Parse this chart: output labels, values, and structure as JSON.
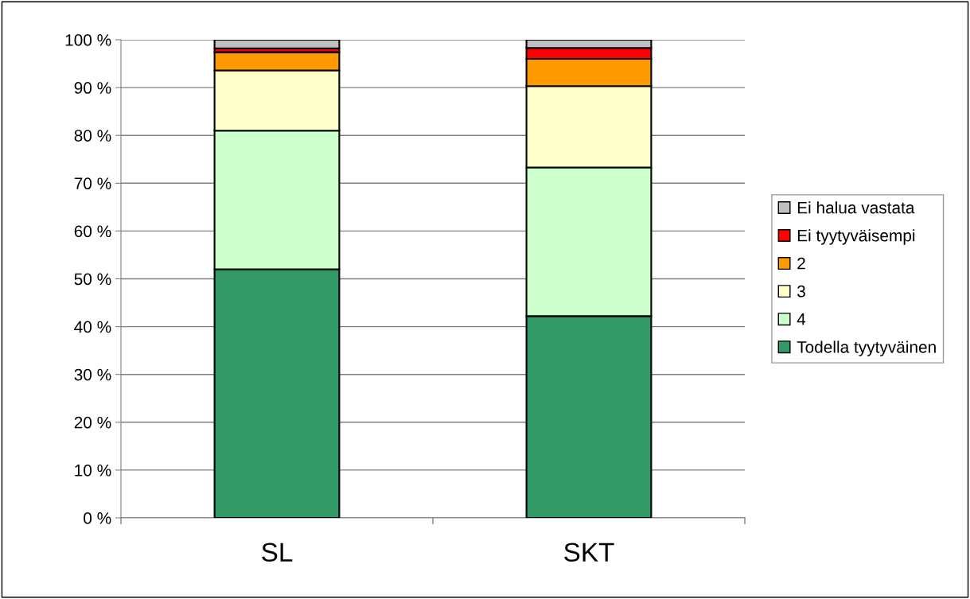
{
  "chart_data": {
    "type": "bar",
    "stacked": true,
    "categories": [
      "SL",
      "SKT"
    ],
    "series": [
      {
        "name": "Todella tyytyväinen",
        "color": "#339966",
        "values": [
          52.0,
          42.2
        ]
      },
      {
        "name": "4",
        "color": "#ccffcc",
        "values": [
          29.0,
          31.1
        ]
      },
      {
        "name": "3",
        "color": "#ffffcc",
        "values": [
          12.6,
          17.0
        ]
      },
      {
        "name": "2",
        "color": "#ff9900",
        "values": [
          3.8,
          5.7
        ]
      },
      {
        "name": "Ei tyytyväisempi",
        "color": "#ff0000",
        "values": [
          0.8,
          2.3
        ]
      },
      {
        "name": "Ei halua vastata",
        "color": "#c0c0c0",
        "values": [
          1.8,
          1.7
        ]
      }
    ],
    "ylim": [
      0,
      100
    ],
    "yticks": [
      {
        "value": 0,
        "label": "0 %"
      },
      {
        "value": 10,
        "label": "10 %"
      },
      {
        "value": 20,
        "label": "20 %"
      },
      {
        "value": 30,
        "label": "30 %"
      },
      {
        "value": 40,
        "label": "40 %"
      },
      {
        "value": 50,
        "label": "50 %"
      },
      {
        "value": 60,
        "label": "60 %"
      },
      {
        "value": 70,
        "label": "70 %"
      },
      {
        "value": 80,
        "label": "80 %"
      },
      {
        "value": 90,
        "label": "90 %"
      },
      {
        "value": 100,
        "label": "100 %"
      }
    ],
    "grid": "y",
    "legend": "right"
  }
}
